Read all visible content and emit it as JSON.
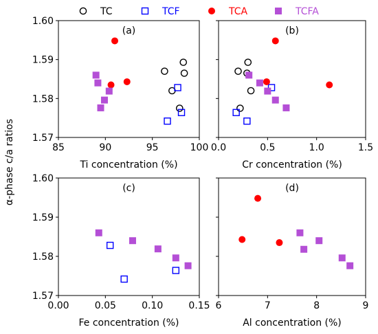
{
  "shared": {
    "ylabel": "α-phase c/a ratios",
    "ylim": [
      1.57,
      1.6
    ],
    "yticks": [
      "1.57",
      "1.58",
      "1.59",
      "1.60"
    ]
  },
  "legend": [
    {
      "name": "TC",
      "marker": "circle",
      "color": "#000000",
      "filled": false
    },
    {
      "name": "TCF",
      "marker": "square",
      "color": "#0000ff",
      "filled": false
    },
    {
      "name": "TCA",
      "marker": "circle",
      "color": "#ff0000",
      "filled": true
    },
    {
      "name": "TCFA",
      "marker": "square",
      "color": "#b44fd6",
      "filled": true
    }
  ],
  "chart_data": [
    {
      "type": "scatter",
      "panel_label": "(a)",
      "xlabel": "Ti concentration (%)",
      "xlim": [
        85,
        100
      ],
      "xticks": [
        "85",
        "90",
        "95",
        "100"
      ],
      "ylim": [
        1.57,
        1.6
      ],
      "series": [
        {
          "name": "TC",
          "x": [
            96.3,
            97.1,
            97.9,
            98.3,
            98.4
          ],
          "y": [
            1.587,
            1.582,
            1.5775,
            1.5893,
            1.5865
          ]
        },
        {
          "name": "TCF",
          "x": [
            96.6,
            97.7,
            98.1
          ],
          "y": [
            1.5742,
            1.5828,
            1.5764
          ]
        },
        {
          "name": "TCA",
          "x": [
            91.0,
            90.6,
            92.3
          ],
          "y": [
            1.5948,
            1.5835,
            1.5843
          ]
        },
        {
          "name": "TCFA",
          "x": [
            89.0,
            89.2,
            89.5,
            89.9,
            90.4
          ],
          "y": [
            1.586,
            1.584,
            1.5776,
            1.5796,
            1.5819
          ]
        }
      ]
    },
    {
      "type": "scatter",
      "panel_label": "(b)",
      "xlabel": "Cr concentration (%)",
      "xlim": [
        0.0,
        1.5
      ],
      "xticks": [
        "0.0",
        "0.5",
        "1.0",
        "1.5"
      ],
      "ylim": [
        1.57,
        1.6
      ],
      "series": [
        {
          "name": "TC",
          "x": [
            0.2,
            0.22,
            0.29,
            0.3,
            0.33
          ],
          "y": [
            1.587,
            1.5775,
            1.5865,
            1.5893,
            1.582
          ]
        },
        {
          "name": "TCF",
          "x": [
            0.18,
            0.29,
            0.54
          ],
          "y": [
            1.5764,
            1.5742,
            1.5828
          ]
        },
        {
          "name": "TCA",
          "x": [
            0.58,
            0.49,
            1.13
          ],
          "y": [
            1.5948,
            1.5843,
            1.5835
          ]
        },
        {
          "name": "TCFA",
          "x": [
            0.31,
            0.42,
            0.5,
            0.58,
            0.69
          ],
          "y": [
            1.586,
            1.584,
            1.5819,
            1.5796,
            1.5776
          ]
        }
      ]
    },
    {
      "type": "scatter",
      "panel_label": "(c)",
      "xlabel": "Fe concentration (%)",
      "xlim": [
        0.0,
        0.15
      ],
      "xticks": [
        "0.00",
        "0.05",
        "0.10",
        "0.15"
      ],
      "ylim": [
        1.57,
        1.6
      ],
      "series": [
        {
          "name": "TCF",
          "x": [
            0.055,
            0.07,
            0.125
          ],
          "y": [
            1.5828,
            1.5742,
            1.5764
          ]
        },
        {
          "name": "TCFA",
          "x": [
            0.043,
            0.079,
            0.106,
            0.125,
            0.138
          ],
          "y": [
            1.586,
            1.584,
            1.5819,
            1.5796,
            1.5776
          ]
        }
      ]
    },
    {
      "type": "scatter",
      "panel_label": "(d)",
      "xlabel": "Al concentration (%)",
      "xlim": [
        6,
        9
      ],
      "xticks": [
        "6",
        "7",
        "8",
        "9"
      ],
      "ylim": [
        1.57,
        1.6
      ],
      "series": [
        {
          "name": "TCA",
          "x": [
            6.8,
            6.48,
            7.24
          ],
          "y": [
            1.5948,
            1.5843,
            1.5835
          ]
        },
        {
          "name": "TCFA",
          "x": [
            7.66,
            7.74,
            8.05,
            8.52,
            8.68
          ],
          "y": [
            1.586,
            1.5818,
            1.584,
            1.5796,
            1.5776
          ]
        }
      ]
    }
  ]
}
